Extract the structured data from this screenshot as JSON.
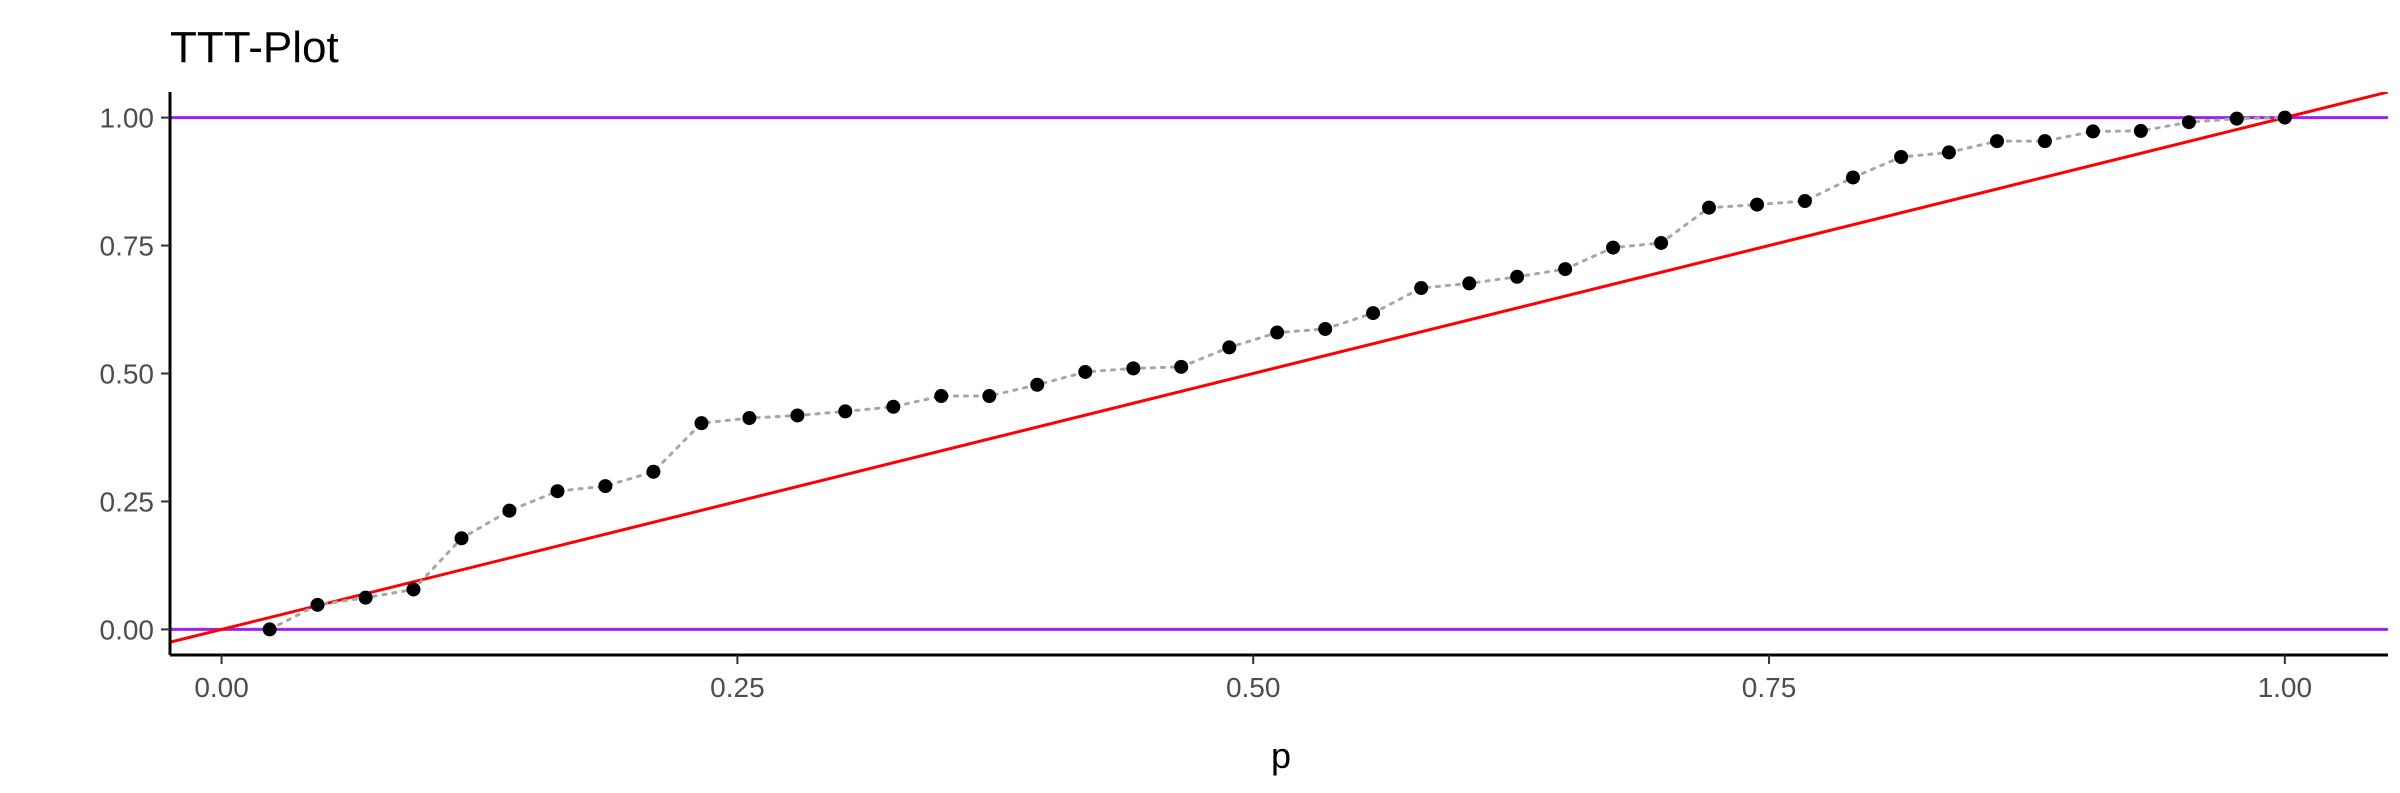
{
  "chart_data": {
    "type": "scatter",
    "title": "TTT-Plot",
    "xlabel": "p",
    "ylabel": "",
    "xlim": [
      -0.025,
      1.05
    ],
    "ylim": [
      -0.05,
      1.05
    ],
    "x_ticks": [
      {
        "value": 0.0,
        "label": "0.00"
      },
      {
        "value": 0.25,
        "label": "0.25"
      },
      {
        "value": 0.5,
        "label": "0.50"
      },
      {
        "value": 0.75,
        "label": "0.75"
      },
      {
        "value": 1.0,
        "label": "1.00"
      }
    ],
    "y_ticks": [
      {
        "value": 0.0,
        "label": "0.00"
      },
      {
        "value": 0.25,
        "label": "0.25"
      },
      {
        "value": 0.5,
        "label": "0.50"
      },
      {
        "value": 0.75,
        "label": "0.75"
      },
      {
        "value": 1.0,
        "label": "1.00"
      }
    ],
    "grid": false,
    "reference_lines": {
      "horizontal": [
        0.0,
        1.0
      ],
      "horizontal_color": "#A020F0",
      "diagonal": {
        "intercept": 0,
        "slope": 1
      },
      "diagonal_color": "#FF0000"
    },
    "point_color": "#000000",
    "connector_color": "#a6a6a6",
    "series": [
      {
        "x": [
          0.0233,
          0.0465,
          0.0698,
          0.093,
          0.1163,
          0.1395,
          0.1628,
          0.186,
          0.2093,
          0.2326,
          0.2558,
          0.2791,
          0.3023,
          0.3256,
          0.3488,
          0.3721,
          0.3953,
          0.4186,
          0.4419,
          0.4651,
          0.4884,
          0.5116,
          0.5349,
          0.5581,
          0.5814,
          0.6047,
          0.6279,
          0.6512,
          0.6744,
          0.6977,
          0.7209,
          0.7442,
          0.7674,
          0.7907,
          0.814,
          0.8372,
          0.8605,
          0.8837,
          0.907,
          0.9302,
          0.9535,
          0.9767,
          1.0
        ],
        "y": [
          0.0,
          0.048,
          0.062,
          0.078,
          0.178,
          0.232,
          0.27,
          0.28,
          0.308,
          0.403,
          0.413,
          0.418,
          0.426,
          0.435,
          0.456,
          0.456,
          0.478,
          0.503,
          0.51,
          0.513,
          0.551,
          0.58,
          0.587,
          0.618,
          0.667,
          0.676,
          0.689,
          0.704,
          0.746,
          0.755,
          0.824,
          0.83,
          0.837,
          0.883,
          0.923,
          0.932,
          0.954,
          0.954,
          0.973,
          0.974,
          0.991,
          0.998,
          1.0
        ]
      }
    ]
  }
}
